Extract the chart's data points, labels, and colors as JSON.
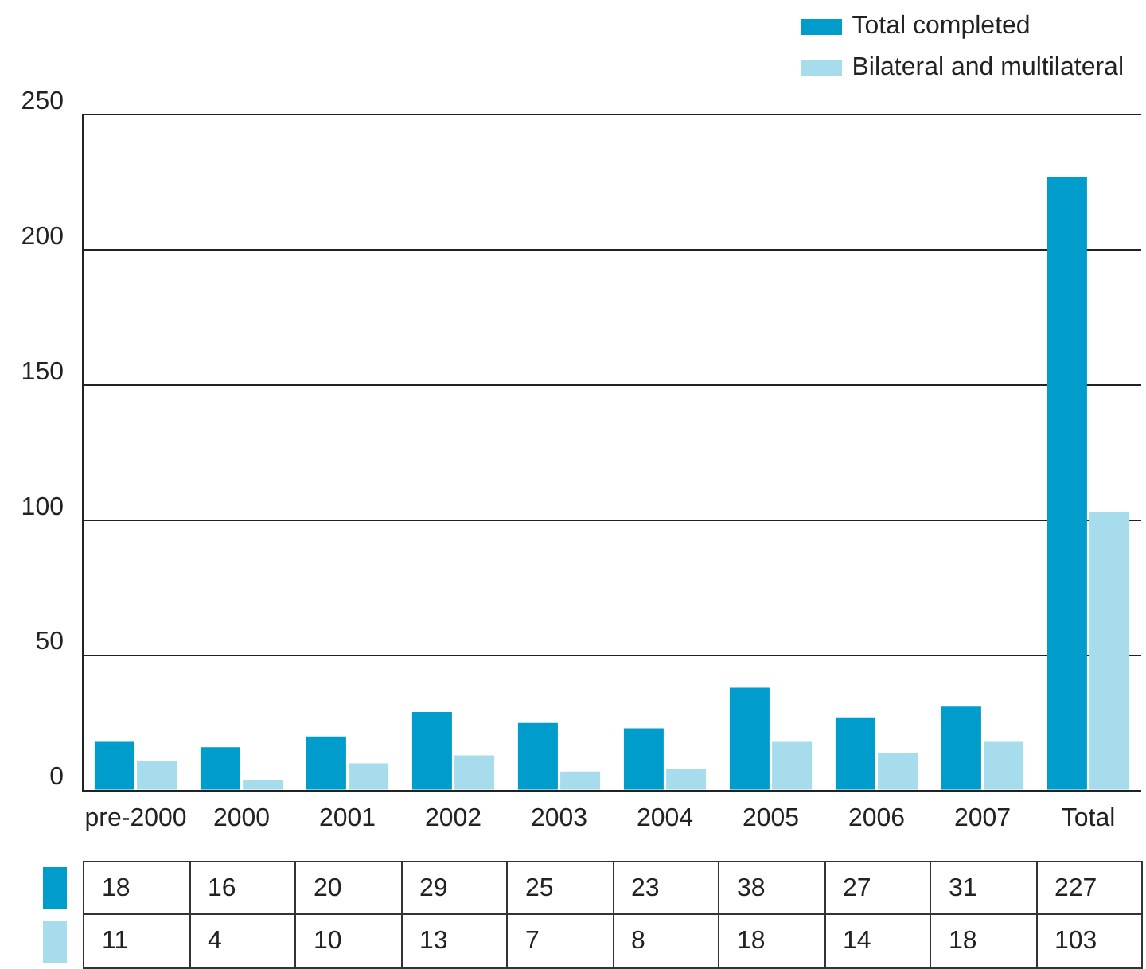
{
  "chart_data": {
    "type": "bar",
    "categories": [
      "pre-2000",
      "2000",
      "2001",
      "2002",
      "2003",
      "2004",
      "2005",
      "2006",
      "2007",
      "Total"
    ],
    "series": [
      {
        "name": "Total completed",
        "color": "#009ccc",
        "values": [
          18,
          16,
          20,
          29,
          25,
          23,
          38,
          27,
          31,
          227
        ]
      },
      {
        "name": "Bilateral and multilateral",
        "color": "#a6dcec",
        "values": [
          11,
          4,
          10,
          13,
          7,
          8,
          18,
          14,
          18,
          103
        ]
      }
    ],
    "ylim": [
      0,
      250
    ],
    "yticks": [
      0,
      50,
      100,
      150,
      200,
      250
    ],
    "grid": "y",
    "legend": "top right",
    "data_labels": true
  }
}
